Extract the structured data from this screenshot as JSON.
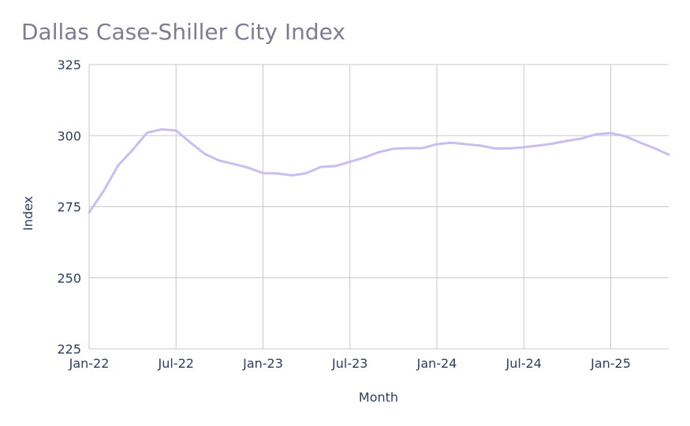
{
  "chart_data": {
    "type": "line",
    "title": "Dallas Case-Shiller City Index",
    "xlabel": "Month",
    "ylabel": "Index",
    "ylim": [
      225,
      325
    ],
    "yticks": [
      "225",
      "250",
      "275",
      "300",
      "325"
    ],
    "xticks": [
      "Jan-22",
      "Jul-22",
      "Jan-23",
      "Jul-23",
      "Jan-24",
      "Jul-24",
      "Jan-25"
    ],
    "grid": true,
    "line_color": "#cbbdf1",
    "x": [
      "Jan-22",
      "Feb-22",
      "Mar-22",
      "Apr-22",
      "May-22",
      "Jun-22",
      "Jul-22",
      "Aug-22",
      "Sep-22",
      "Oct-22",
      "Nov-22",
      "Dec-22",
      "Jan-23",
      "Feb-23",
      "Mar-23",
      "Apr-23",
      "May-23",
      "Jun-23",
      "Jul-23",
      "Aug-23",
      "Sep-23",
      "Oct-23",
      "Nov-23",
      "Dec-23",
      "Jan-24",
      "Feb-24",
      "Mar-24",
      "Apr-24",
      "May-24",
      "Jun-24",
      "Jul-24",
      "Aug-24",
      "Sep-24",
      "Oct-24",
      "Nov-24",
      "Dec-24",
      "Jan-25",
      "Feb-25",
      "Mar-25",
      "Apr-25",
      "May-25"
    ],
    "series": [
      {
        "values": [
          273.0,
          280.5,
          289.5,
          295.0,
          301.0,
          302.2,
          301.8,
          297.5,
          293.5,
          291.2,
          290.0,
          288.7,
          286.8,
          286.7,
          286.0,
          286.8,
          289.0,
          289.3,
          290.8,
          292.3,
          294.2,
          295.4,
          295.6,
          295.6,
          297.0,
          297.5,
          297.0,
          296.5,
          295.5,
          295.5,
          295.9,
          296.5,
          297.2,
          298.2,
          299.0,
          300.5,
          300.9,
          299.8,
          297.6,
          295.6,
          293.3
        ]
      }
    ]
  }
}
